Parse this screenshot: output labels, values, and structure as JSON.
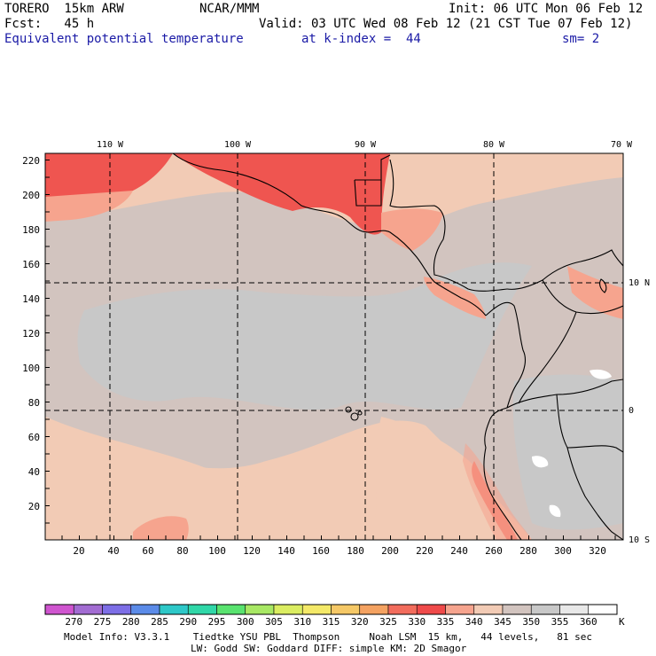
{
  "header": {
    "model": "TORERO  15km ARW",
    "org": "NCAR/MMM",
    "init": "Init: 06 UTC Mon 06 Feb 12",
    "fcst": "Fcst:   45 h",
    "valid": "Valid: 03 UTC Wed 08 Feb 12 (21 CST Tue 07 Feb 12)",
    "field": "Equivalent potential temperature",
    "level": "at k-index =  44",
    "smooth": "sm= 2"
  },
  "map": {
    "top_labels": [
      "110 W",
      "100 W",
      "90 W",
      "80 W",
      "70 W"
    ],
    "right_labels": [
      "10 N",
      "0",
      "10 S"
    ],
    "x_ticks": [
      "20",
      "40",
      "60",
      "80",
      "100",
      "120",
      "140",
      "160",
      "180",
      "200",
      "220",
      "240",
      "260",
      "280",
      "300",
      "320"
    ],
    "y_ticks": [
      "20",
      "40",
      "60",
      "80",
      "100",
      "120",
      "140",
      "160",
      "180",
      "200",
      "220"
    ],
    "colors": {
      "ocean_gray": "#c8c8c8",
      "mid_gray": "#d2c4bf",
      "peach": "#f2cbb5",
      "salmon": "#f6a48e",
      "coral": "#f3786c",
      "red": "#ef5550",
      "land_outline": "#000000"
    }
  },
  "legend": {
    "values": [
      "270",
      "275",
      "280",
      "285",
      "290",
      "295",
      "300",
      "305",
      "310",
      "315",
      "320",
      "325",
      "330",
      "335",
      "340",
      "345",
      "350",
      "355",
      "360"
    ],
    "unit": "K",
    "colors": [
      "#cf55cf",
      "#a26cd2",
      "#7d6ee6",
      "#5b8be8",
      "#2ec8c8",
      "#30d7a8",
      "#59e36f",
      "#a8e864",
      "#dbed61",
      "#f4e968",
      "#f5c866",
      "#f4a261",
      "#f26c5c",
      "#ef4a4a",
      "#f6a48e",
      "#f2cbb5",
      "#d2c4bf",
      "#c8c8c8",
      "#e8e8e8",
      "#ffffff"
    ]
  },
  "footer": {
    "line1": "Model Info: V3.3.1    Tiedtke YSU PBL  Thompson     Noah LSM  15 km,   44 levels,   81 sec",
    "line2": "LW: Godd SW: Goddard DIFF: simple KM: 2D Smagor"
  }
}
